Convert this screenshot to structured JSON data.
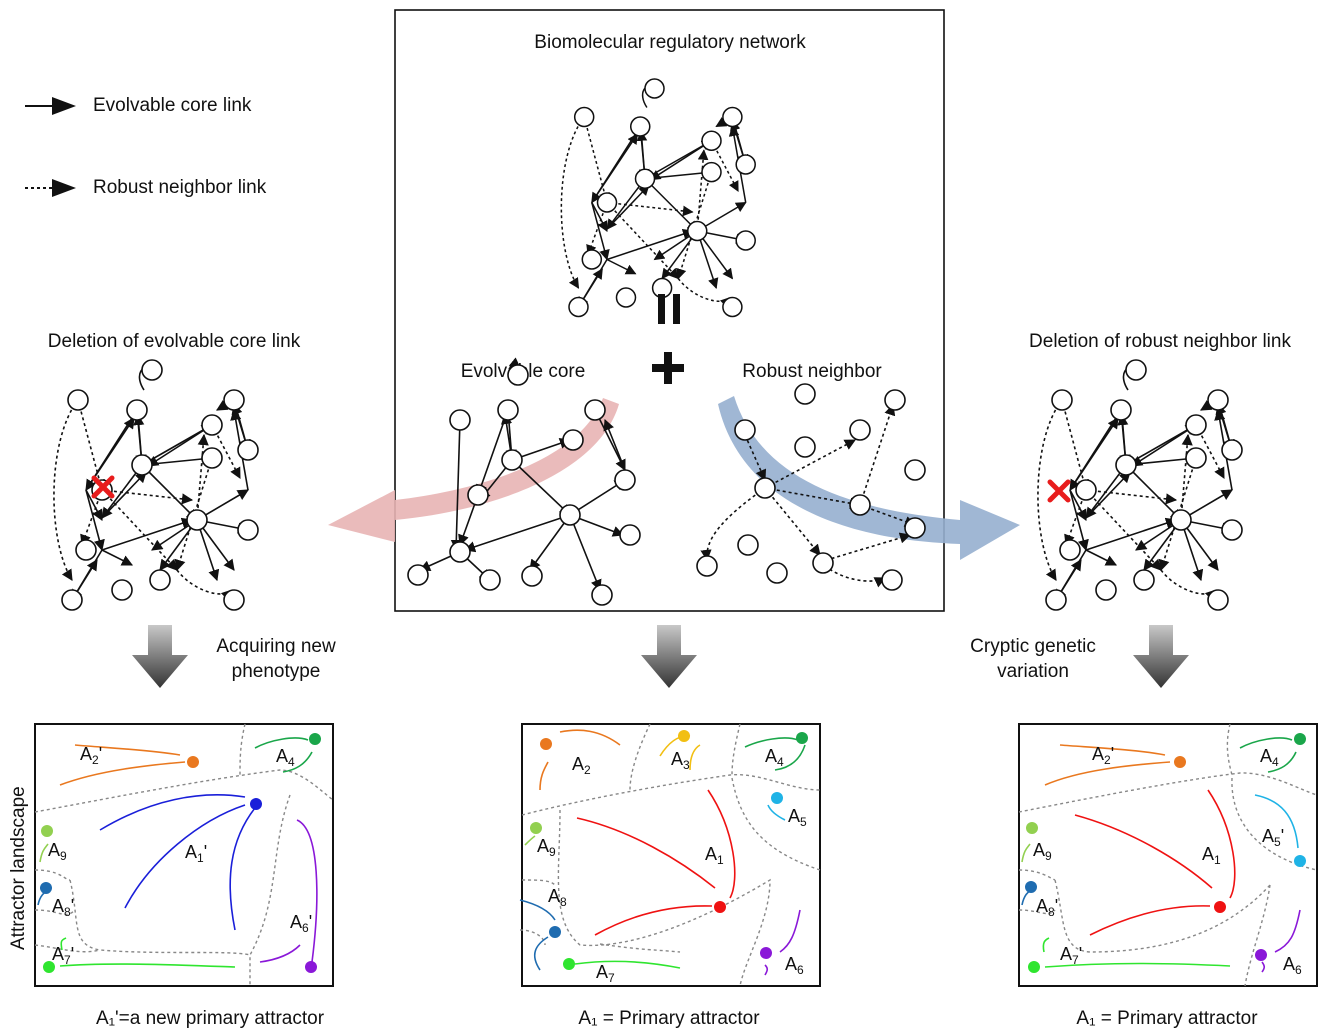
{
  "legend": {
    "core_link": "Evolvable core link",
    "neighbor_link": "Robust neighbor link"
  },
  "network": {
    "title": "Biomolecular regulatory network",
    "core_label": "Evolvable core",
    "neighbor_label": "Robust neighbor"
  },
  "left": {
    "title": "Deletion of evolvable core link",
    "arrow_label": [
      "Acquiring new",
      "phenotype"
    ],
    "caption": "A₁'=a new primary attractor"
  },
  "right": {
    "title": "Deletion of robust neighbor link",
    "arrow_label": [
      "Cryptic genetic",
      "variation"
    ],
    "caption": "A₁ = Primary attractor"
  },
  "middle": {
    "caption": "A₁ = Primary attractor"
  },
  "axis_label": "Attractor landscape",
  "attractor_labels": {
    "left": [
      "A2'",
      "A4",
      "A1'",
      "A9",
      "A8'",
      "A7'",
      "A6'"
    ],
    "middle": [
      "A2",
      "A3",
      "A4",
      "A5",
      "A1",
      "A9",
      "A8",
      "A7",
      "A6"
    ],
    "right": [
      "A2'",
      "A4",
      "A5'",
      "A1",
      "A9",
      "A8'",
      "A7'",
      "A6"
    ]
  },
  "colors": {
    "orange": "#e9781f",
    "yellow": "#f2bf12",
    "green": "#1aa64a",
    "lime": "#2fe52f",
    "cyan": "#1fb3e6",
    "blue": "#1a1fd9",
    "navy": "#1f6cb0",
    "purple": "#8a18d8",
    "red": "#ef1212",
    "lightgreen": "#92d050",
    "pink": "#e8b4b4",
    "steel": "#96afcf"
  }
}
